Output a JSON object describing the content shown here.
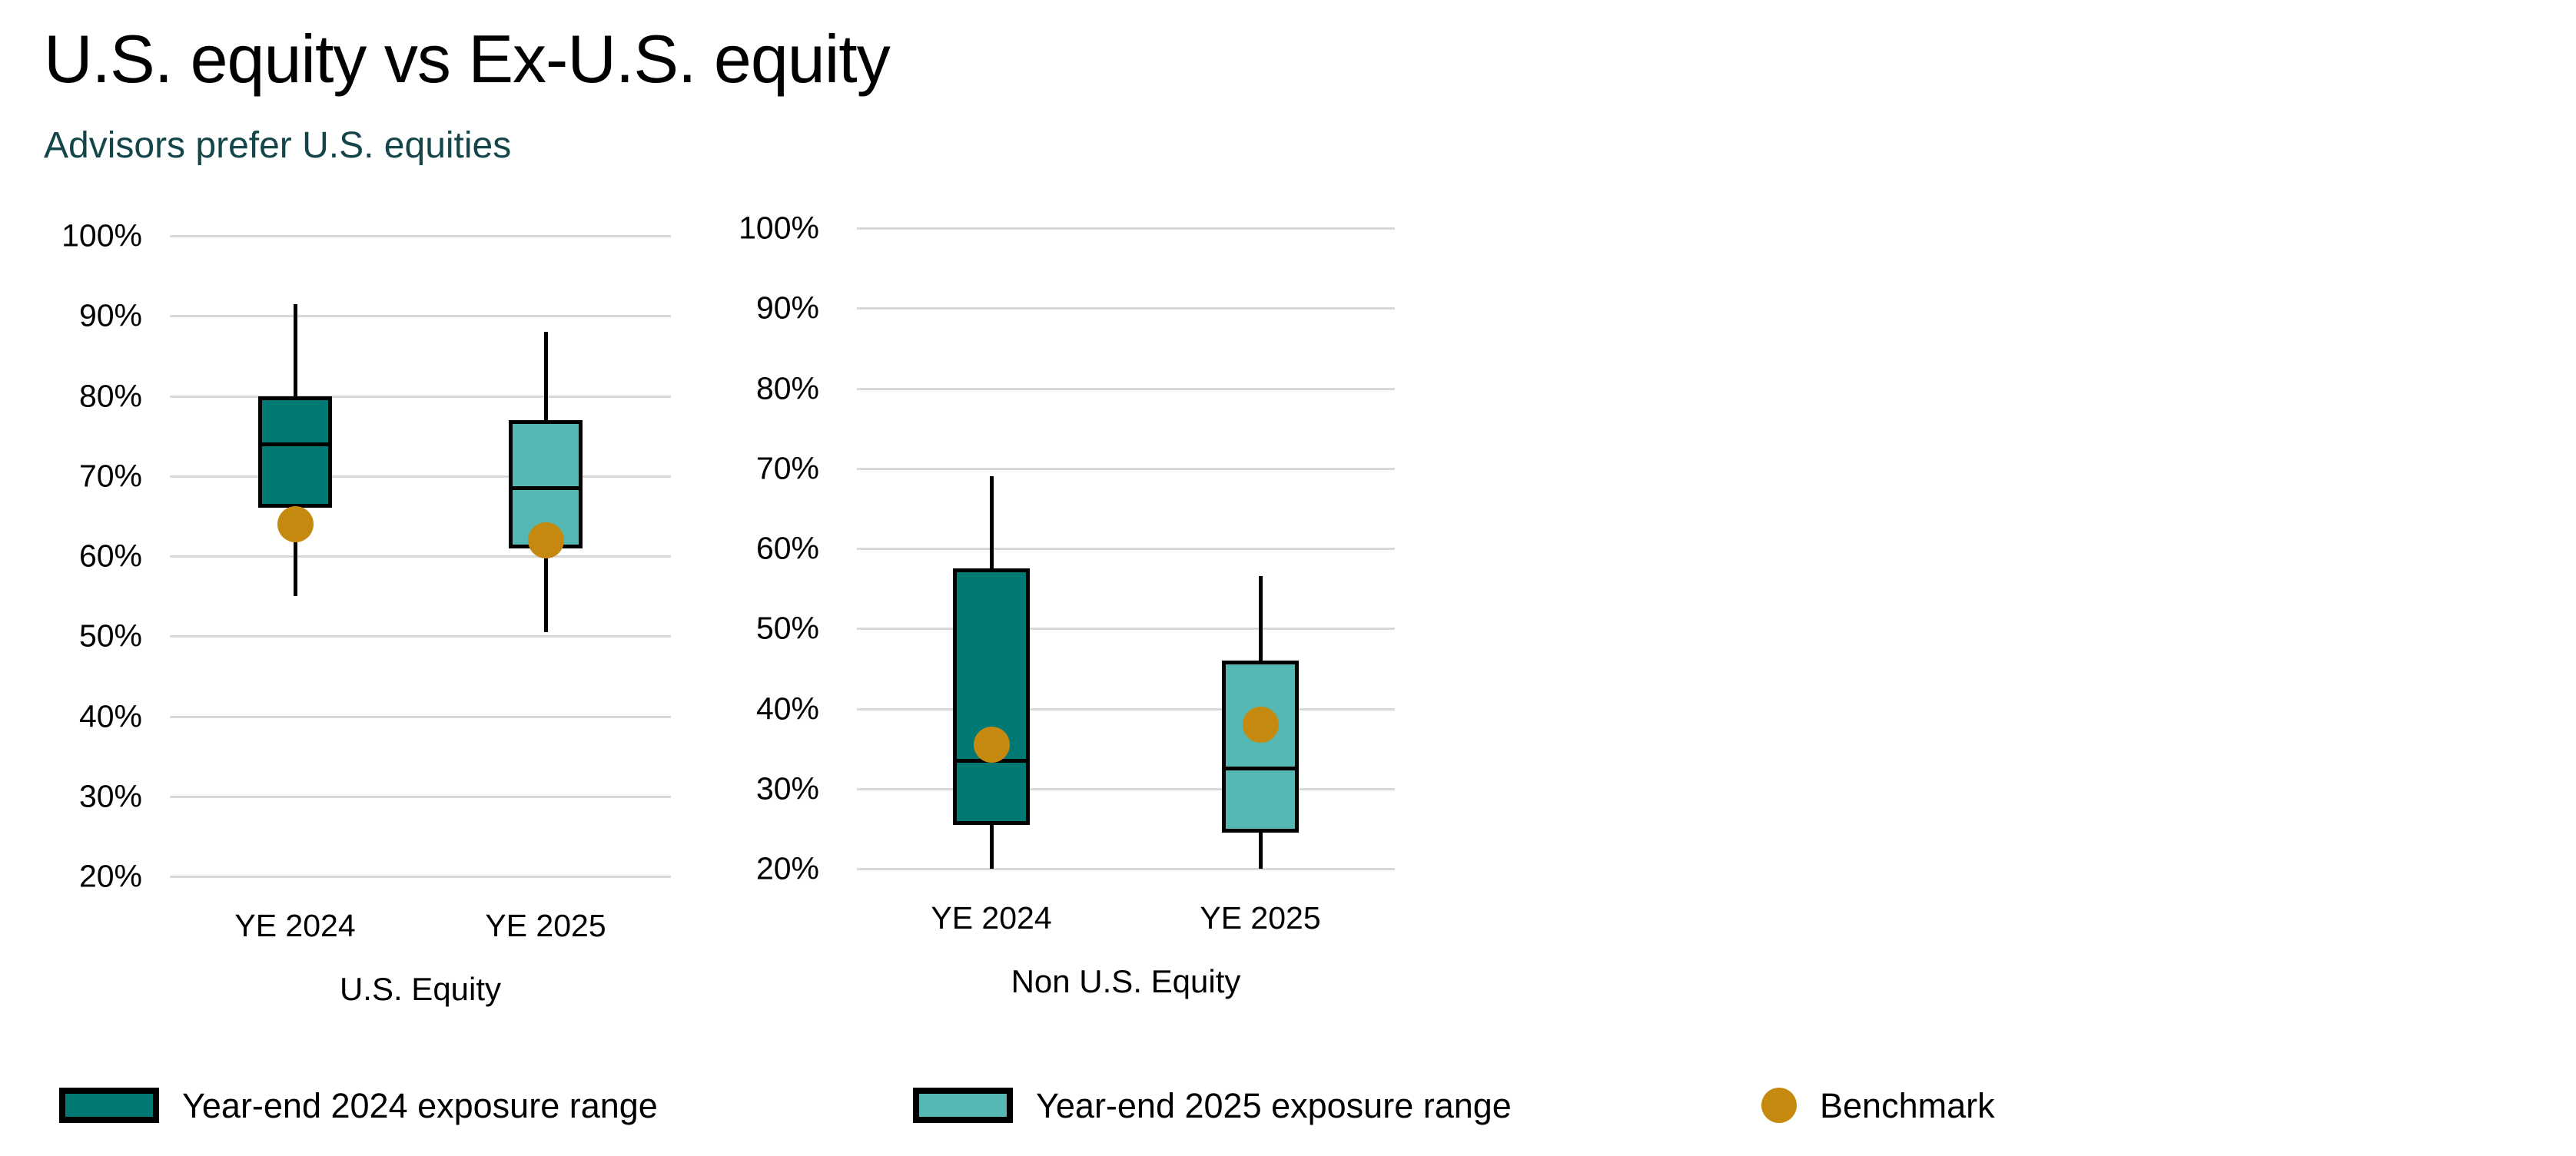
{
  "title": "U.S. equity vs Ex-U.S. equity",
  "subtitle": "Advisors prefer U.S. equities",
  "colors": {
    "year_end_2024": "#007873",
    "year_end_2025": "#55b8b2",
    "benchmark": "#c5890f",
    "subtitle_text": "#134549",
    "gridline": "#d9d9d9",
    "axis_text": "#000000"
  },
  "legend": {
    "items": [
      {
        "label": "Year-end 2024 exposure range",
        "swatch": "year_end_2024",
        "shape": "rect"
      },
      {
        "label": "Year-end 2025 exposure range",
        "swatch": "year_end_2025",
        "shape": "rect"
      },
      {
        "label": "Benchmark",
        "swatch": "benchmark",
        "shape": "circle"
      }
    ]
  },
  "chart_data": [
    {
      "type": "boxplot",
      "group_label": "U.S. Equity",
      "categories": [
        "YE 2024",
        "YE 2025"
      ],
      "ylim": [
        20,
        100
      ],
      "ytick_step": 10,
      "ytick_labels": [
        "100%",
        "90%",
        "80%",
        "70%",
        "60%",
        "50%",
        "40%",
        "30%",
        "20%"
      ],
      "grid": "horizontal",
      "series": [
        {
          "name": "Year-end 2024 exposure range",
          "category": "YE 2024",
          "color_key": "year_end_2024",
          "whisker_high": 91.5,
          "q3": 80,
          "median": 74,
          "q1": 66,
          "whisker_low": 55,
          "benchmark": 64
        },
        {
          "name": "Year-end 2025 exposure range",
          "category": "YE 2025",
          "color_key": "year_end_2025",
          "whisker_high": 88,
          "q3": 77,
          "median": 68.5,
          "q1": 61,
          "whisker_low": 50.5,
          "benchmark": 62
        }
      ]
    },
    {
      "type": "boxplot",
      "group_label": "Non U.S. Equity",
      "categories": [
        "YE 2024",
        "YE 2025"
      ],
      "ylim": [
        20,
        100
      ],
      "ytick_step": 10,
      "ytick_labels": [
        "100%",
        "90%",
        "80%",
        "70%",
        "60%",
        "50%",
        "40%",
        "30%",
        "20%"
      ],
      "grid": "horizontal",
      "series": [
        {
          "name": "Year-end 2024 exposure range",
          "category": "YE 2024",
          "color_key": "year_end_2024",
          "whisker_high": 69,
          "q3": 57.5,
          "median": 33.5,
          "q1": 25.5,
          "whisker_low": 20,
          "benchmark": 35.5
        },
        {
          "name": "Year-end 2025 exposure range",
          "category": "YE 2025",
          "color_key": "year_end_2025",
          "whisker_high": 56.5,
          "q3": 46,
          "median": 32.5,
          "q1": 24.5,
          "whisker_low": 20,
          "benchmark": 38
        }
      ]
    }
  ]
}
